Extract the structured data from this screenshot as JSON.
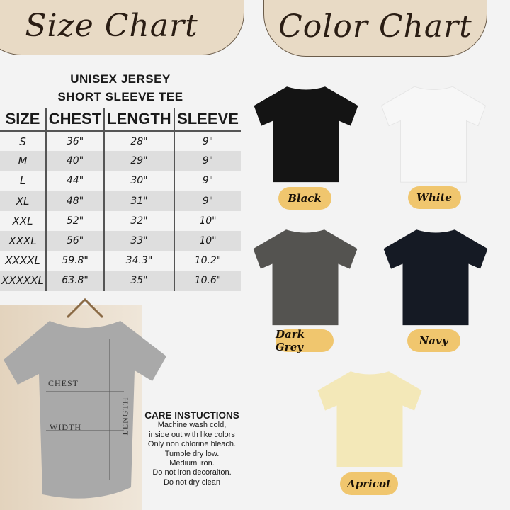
{
  "headers": {
    "size_chart": "Size Chart",
    "color_chart": "Color Chart"
  },
  "product": {
    "line1": "UNISEX JERSEY",
    "line2": "SHORT SLEEVE TEE"
  },
  "table": {
    "columns": [
      "SIZE",
      "CHEST",
      "LENGTH",
      "SLEEVE"
    ],
    "rows": [
      [
        "S",
        "36\"",
        "28\"",
        "9\""
      ],
      [
        "M",
        "40\"",
        "29\"",
        "9\""
      ],
      [
        "L",
        "44\"",
        "30\"",
        "9\""
      ],
      [
        "XL",
        "48\"",
        "31\"",
        "9\""
      ],
      [
        "XXL",
        "52\"",
        "32\"",
        "10\""
      ],
      [
        "XXXL",
        "56\"",
        "33\"",
        "10\""
      ],
      [
        "XXXXL",
        "59.8\"",
        "34.3\"",
        "10.2\""
      ],
      [
        "XXXXXL",
        "63.8\"",
        "35\"",
        "10.6\""
      ]
    ]
  },
  "diagram": {
    "chest": "CHEST",
    "width": "WIDTH",
    "length": "LENGTH"
  },
  "care": {
    "title": "CARE INSTUCTIONS",
    "lines": [
      "Machine wash cold,",
      "inside out with like colors",
      "Only non chlorine bleach.",
      "Tumble dry low.",
      "Medium iron.",
      "Do not iron decoraiton.",
      "Do not dry clean"
    ]
  },
  "colors": [
    {
      "name": "Black",
      "hex": "#141414"
    },
    {
      "name": "White",
      "hex": "#f7f7f7"
    },
    {
      "name": "Dark Grey",
      "hex": "#545350"
    },
    {
      "name": "Navy",
      "hex": "#151a24"
    },
    {
      "name": "Apricot",
      "hex": "#f3e8b8"
    }
  ],
  "accent": {
    "header_pill": "#e8dac5",
    "label_pill": "#f0c66e"
  }
}
